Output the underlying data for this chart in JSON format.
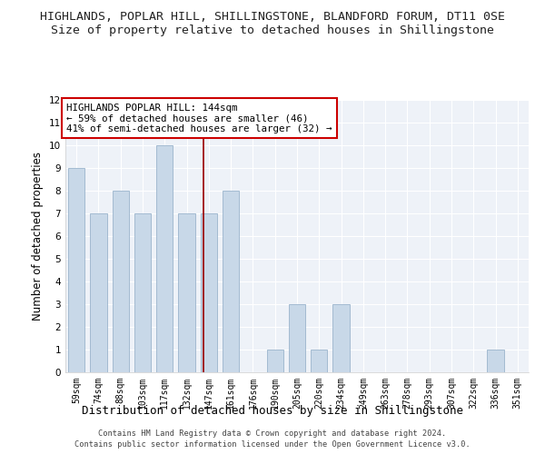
{
  "title_line1": "HIGHLANDS, POPLAR HILL, SHILLINGSTONE, BLANDFORD FORUM, DT11 0SE",
  "title_line2": "Size of property relative to detached houses in Shillingstone",
  "xlabel": "Distribution of detached houses by size in Shillingstone",
  "ylabel": "Number of detached properties",
  "footnote": "Contains HM Land Registry data © Crown copyright and database right 2024.\nContains public sector information licensed under the Open Government Licence v3.0.",
  "categories": [
    "59sqm",
    "74sqm",
    "88sqm",
    "103sqm",
    "117sqm",
    "132sqm",
    "147sqm",
    "161sqm",
    "176sqm",
    "190sqm",
    "205sqm",
    "220sqm",
    "234sqm",
    "249sqm",
    "263sqm",
    "278sqm",
    "293sqm",
    "307sqm",
    "322sqm",
    "336sqm",
    "351sqm"
  ],
  "values": [
    9,
    7,
    8,
    7,
    10,
    7,
    7,
    8,
    0,
    1,
    3,
    1,
    3,
    0,
    0,
    0,
    0,
    0,
    0,
    1,
    0
  ],
  "bar_color": "#c8d8e8",
  "bar_edgecolor": "#9ab4cc",
  "vline_x_index": 5.75,
  "vline_color": "#990000",
  "annotation_text": "HIGHLANDS POPLAR HILL: 144sqm\n← 59% of detached houses are smaller (46)\n41% of semi-detached houses are larger (32) →",
  "annotation_box_facecolor": "white",
  "annotation_box_edgecolor": "#cc0000",
  "ylim": [
    0,
    12
  ],
  "yticks": [
    0,
    1,
    2,
    3,
    4,
    5,
    6,
    7,
    8,
    9,
    10,
    11,
    12
  ],
  "background_color": "#ffffff",
  "plot_bg_color": "#eef2f8",
  "grid_color": "#ffffff",
  "title_fontsize": 9.5,
  "subtitle_fontsize": 9.5,
  "ylabel_fontsize": 8.5,
  "xlabel_fontsize": 9,
  "tick_fontsize": 7,
  "annot_fontsize": 7.8,
  "footnote_fontsize": 6.2
}
